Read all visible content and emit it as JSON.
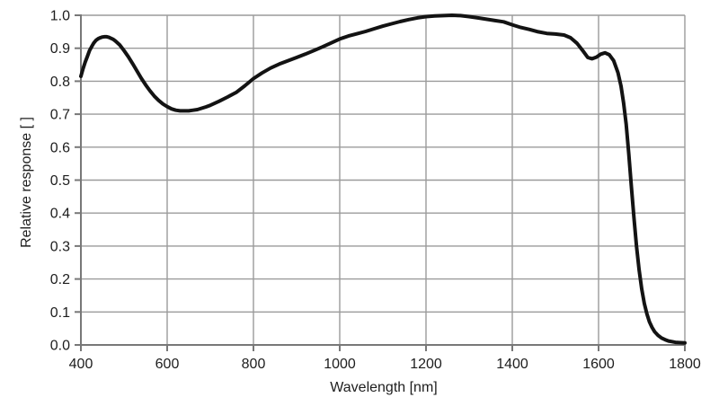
{
  "chart_data": {
    "type": "line",
    "title": "",
    "xlabel": "Wavelength [nm]",
    "ylabel": "Relative response [ ]",
    "xlim": [
      400,
      1800
    ],
    "ylim": [
      0.0,
      1.0
    ],
    "grid": true,
    "legend": "none",
    "x_ticks": [
      400,
      600,
      800,
      1000,
      1200,
      1400,
      1600,
      1800
    ],
    "x_tick_labels": [
      "400",
      "600",
      "800",
      "1000",
      "1200",
      "1400",
      "1600",
      "1800"
    ],
    "y_ticks": [
      0.0,
      0.1,
      0.2,
      0.3,
      0.4,
      0.5,
      0.6,
      0.7,
      0.8,
      0.9,
      1.0
    ],
    "y_tick_labels": [
      "0.0",
      "0.1",
      "0.2",
      "0.3",
      "0.4",
      "0.5",
      "0.6",
      "0.7",
      "0.8",
      "0.9",
      "1.0"
    ],
    "colors": {
      "background": "#ffffff",
      "gridline": "#9b9b9b",
      "axis": "#787878",
      "text": "#1d1d1d",
      "curve": "#131313"
    },
    "series": [
      {
        "name": "relative-response",
        "color": "#131313",
        "points": [
          [
            400,
            0.815
          ],
          [
            405,
            0.838
          ],
          [
            410,
            0.858
          ],
          [
            415,
            0.875
          ],
          [
            420,
            0.893
          ],
          [
            425,
            0.905
          ],
          [
            430,
            0.916
          ],
          [
            435,
            0.924
          ],
          [
            440,
            0.929
          ],
          [
            445,
            0.932
          ],
          [
            450,
            0.934
          ],
          [
            455,
            0.935
          ],
          [
            460,
            0.935
          ],
          [
            465,
            0.933
          ],
          [
            470,
            0.93
          ],
          [
            475,
            0.927
          ],
          [
            480,
            0.922
          ],
          [
            490,
            0.91
          ],
          [
            500,
            0.893
          ],
          [
            510,
            0.874
          ],
          [
            520,
            0.853
          ],
          [
            530,
            0.831
          ],
          [
            540,
            0.809
          ],
          [
            550,
            0.789
          ],
          [
            560,
            0.771
          ],
          [
            570,
            0.755
          ],
          [
            580,
            0.742
          ],
          [
            590,
            0.731
          ],
          [
            600,
            0.723
          ],
          [
            610,
            0.716
          ],
          [
            620,
            0.712
          ],
          [
            630,
            0.71
          ],
          [
            640,
            0.71
          ],
          [
            650,
            0.71
          ],
          [
            660,
            0.712
          ],
          [
            670,
            0.714
          ],
          [
            680,
            0.718
          ],
          [
            690,
            0.722
          ],
          [
            700,
            0.727
          ],
          [
            720,
            0.739
          ],
          [
            740,
            0.752
          ],
          [
            760,
            0.766
          ],
          [
            780,
            0.786
          ],
          [
            800,
            0.808
          ],
          [
            820,
            0.825
          ],
          [
            840,
            0.84
          ],
          [
            860,
            0.852
          ],
          [
            880,
            0.862
          ],
          [
            900,
            0.872
          ],
          [
            920,
            0.882
          ],
          [
            940,
            0.893
          ],
          [
            960,
            0.904
          ],
          [
            980,
            0.916
          ],
          [
            1000,
            0.928
          ],
          [
            1020,
            0.937
          ],
          [
            1040,
            0.944
          ],
          [
            1060,
            0.951
          ],
          [
            1080,
            0.959
          ],
          [
            1100,
            0.967
          ],
          [
            1120,
            0.974
          ],
          [
            1140,
            0.981
          ],
          [
            1160,
            0.987
          ],
          [
            1180,
            0.992
          ],
          [
            1200,
            0.996
          ],
          [
            1220,
            0.998
          ],
          [
            1240,
            0.999
          ],
          [
            1260,
            1.0
          ],
          [
            1280,
            0.999
          ],
          [
            1300,
            0.996
          ],
          [
            1320,
            0.992
          ],
          [
            1340,
            0.988
          ],
          [
            1360,
            0.984
          ],
          [
            1380,
            0.98
          ],
          [
            1400,
            0.971
          ],
          [
            1420,
            0.963
          ],
          [
            1440,
            0.957
          ],
          [
            1460,
            0.95
          ],
          [
            1480,
            0.945
          ],
          [
            1500,
            0.943
          ],
          [
            1520,
            0.94
          ],
          [
            1535,
            0.932
          ],
          [
            1550,
            0.915
          ],
          [
            1565,
            0.89
          ],
          [
            1575,
            0.872
          ],
          [
            1585,
            0.868
          ],
          [
            1595,
            0.873
          ],
          [
            1605,
            0.882
          ],
          [
            1615,
            0.886
          ],
          [
            1625,
            0.88
          ],
          [
            1635,
            0.862
          ],
          [
            1645,
            0.826
          ],
          [
            1652,
            0.785
          ],
          [
            1658,
            0.735
          ],
          [
            1664,
            0.67
          ],
          [
            1670,
            0.58
          ],
          [
            1676,
            0.48
          ],
          [
            1682,
            0.385
          ],
          [
            1688,
            0.3
          ],
          [
            1694,
            0.228
          ],
          [
            1700,
            0.17
          ],
          [
            1706,
            0.126
          ],
          [
            1712,
            0.094
          ],
          [
            1718,
            0.07
          ],
          [
            1724,
            0.053
          ],
          [
            1730,
            0.04
          ],
          [
            1738,
            0.029
          ],
          [
            1746,
            0.021
          ],
          [
            1754,
            0.016
          ],
          [
            1762,
            0.012
          ],
          [
            1770,
            0.01
          ],
          [
            1778,
            0.008
          ],
          [
            1786,
            0.007
          ],
          [
            1800,
            0.006
          ]
        ]
      }
    ]
  }
}
